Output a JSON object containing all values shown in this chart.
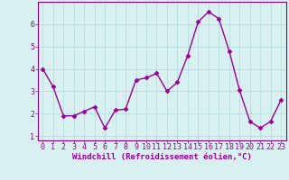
{
  "x": [
    0,
    1,
    2,
    3,
    4,
    5,
    6,
    7,
    8,
    9,
    10,
    11,
    12,
    13,
    14,
    15,
    16,
    17,
    18,
    19,
    20,
    21,
    22,
    23
  ],
  "y": [
    4.0,
    3.2,
    1.9,
    1.9,
    2.1,
    2.3,
    1.35,
    2.15,
    2.2,
    3.5,
    3.6,
    3.8,
    3.0,
    3.4,
    4.6,
    6.1,
    6.55,
    6.25,
    4.8,
    3.05,
    1.65,
    1.35,
    1.65,
    2.6
  ],
  "line_color": "#990099",
  "marker": "D",
  "marker_size": 2.5,
  "linewidth": 1.0,
  "xlabel": "Windchill (Refroidissement éolien,°C)",
  "xlabel_fontsize": 6.5,
  "ylim": [
    0.8,
    7.0
  ],
  "xlim": [
    -0.5,
    23.5
  ],
  "yticks": [
    1,
    2,
    3,
    4,
    5,
    6
  ],
  "xtick_labels": [
    "0",
    "1",
    "2",
    "3",
    "4",
    "5",
    "6",
    "7",
    "8",
    "9",
    "10",
    "11",
    "12",
    "13",
    "14",
    "15",
    "16",
    "17",
    "18",
    "19",
    "20",
    "21",
    "22",
    "23"
  ],
  "background_color": "#d8f0f0",
  "grid_color": "#b0d8d8",
  "tick_fontsize": 6,
  "spine_color": "#880088"
}
